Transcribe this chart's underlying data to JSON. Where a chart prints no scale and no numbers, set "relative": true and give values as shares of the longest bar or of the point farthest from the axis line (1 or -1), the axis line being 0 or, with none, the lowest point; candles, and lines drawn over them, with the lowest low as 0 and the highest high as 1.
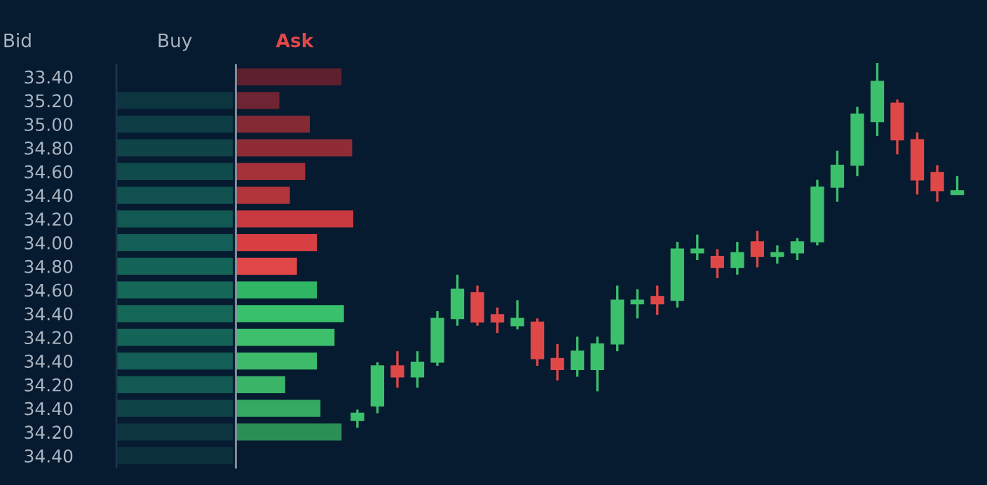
{
  "chart_data": [
    {
      "type": "bar",
      "orientation": "horizontal",
      "relative": true,
      "ylabel": "Bid",
      "categories": [
        "33.40",
        "35.20",
        "35.00",
        "34.80",
        "34.60",
        "34.40",
        "34.20",
        "34.00",
        "34.80",
        "34.60",
        "34.40",
        "34.20",
        "34.40",
        "34.20",
        "34.40",
        "34.20",
        "34.40"
      ],
      "series": [
        {
          "name": "Buy",
          "values": [
            null,
            1.0,
            1.0,
            1.0,
            1.0,
            1.0,
            1.0,
            1.0,
            1.0,
            1.0,
            1.0,
            1.0,
            1.0,
            1.0,
            1.0,
            1.0,
            1.0
          ],
          "colors": [
            null,
            "#0d3540",
            "#0e3d45",
            "#0f4448",
            "#104b4c",
            "#115250",
            "#125853",
            "#135e56",
            "#146457",
            "#156858",
            "#156858",
            "#146457",
            "#135e56",
            "#125853",
            "#0f4448",
            "#0d3540",
            "#0c2f3c"
          ]
        }
      ]
    },
    {
      "type": "bar",
      "orientation": "horizontal",
      "relative": true,
      "tick_labels": false,
      "categories": [
        "33.40",
        "35.20",
        "35.00",
        "34.80",
        "34.60",
        "34.40",
        "34.20",
        "34.00",
        "34.80",
        "34.60",
        "34.40",
        "34.20",
        "34.40",
        "34.20",
        "34.40",
        "34.20",
        "34.40"
      ],
      "series": [
        {
          "name": "Ask",
          "values": [
            0.9,
            0.37,
            0.63,
            0.99,
            0.59,
            0.46,
            1.0,
            0.69,
            0.52,
            0.69,
            0.92,
            0.84,
            0.69,
            0.42,
            0.72,
            0.9,
            null
          ],
          "colors": [
            "#5e1f2e",
            "#6e2432",
            "#842a35",
            "#8f2c36",
            "#a53139",
            "#b3353c",
            "#c8393f",
            "#d73f42",
            "#e04848",
            "#2fb564",
            "#38c06a",
            "#3cc06c",
            "#3dbb6a",
            "#3ab467",
            "#35a862",
            "#2a8f55",
            null
          ]
        }
      ]
    },
    {
      "type": "candlestick",
      "relative": true,
      "categories": [
        null,
        null,
        null,
        null,
        null,
        null,
        null,
        null,
        null,
        null,
        null,
        null,
        null,
        null,
        null,
        null,
        null,
        null,
        null,
        null,
        null,
        null,
        null,
        null,
        null,
        null,
        null,
        null,
        null,
        null,
        null
      ],
      "ohlc": [
        [
          0.02,
          0.05,
          0.0,
          0.04
        ],
        [
          0.06,
          0.18,
          0.04,
          0.17
        ],
        [
          0.17,
          0.21,
          0.11,
          0.14
        ],
        [
          0.14,
          0.21,
          0.11,
          0.18
        ],
        [
          0.18,
          0.32,
          0.17,
          0.3
        ],
        [
          0.3,
          0.42,
          0.28,
          0.38
        ],
        [
          0.37,
          0.39,
          0.28,
          0.29
        ],
        [
          0.31,
          0.33,
          0.26,
          0.29
        ],
        [
          0.28,
          0.35,
          0.27,
          0.3
        ],
        [
          0.29,
          0.3,
          0.17,
          0.19
        ],
        [
          0.19,
          0.23,
          0.13,
          0.16
        ],
        [
          0.16,
          0.25,
          0.14,
          0.21
        ],
        [
          0.16,
          0.25,
          0.1,
          0.23
        ],
        [
          0.23,
          0.39,
          0.21,
          0.35
        ],
        [
          0.34,
          0.38,
          0.3,
          0.35
        ],
        [
          0.36,
          0.39,
          0.31,
          0.34
        ],
        [
          0.35,
          0.51,
          0.33,
          0.49
        ],
        [
          0.48,
          0.53,
          0.46,
          0.49
        ],
        [
          0.47,
          0.49,
          0.41,
          0.44
        ],
        [
          0.44,
          0.51,
          0.42,
          0.48
        ],
        [
          0.51,
          0.54,
          0.44,
          0.47
        ],
        [
          0.47,
          0.5,
          0.45,
          0.48
        ],
        [
          0.48,
          0.52,
          0.46,
          0.51
        ],
        [
          0.51,
          0.68,
          0.5,
          0.66
        ],
        [
          0.66,
          0.76,
          0.62,
          0.72
        ],
        [
          0.72,
          0.88,
          0.69,
          0.86
        ],
        [
          0.84,
          1.0,
          0.8,
          0.95
        ],
        [
          0.89,
          0.9,
          0.75,
          0.79
        ],
        [
          0.79,
          0.81,
          0.64,
          0.68
        ],
        [
          0.7,
          0.72,
          0.62,
          0.65
        ],
        [
          0.64,
          0.69,
          0.64,
          0.65
        ]
      ]
    }
  ]
}
